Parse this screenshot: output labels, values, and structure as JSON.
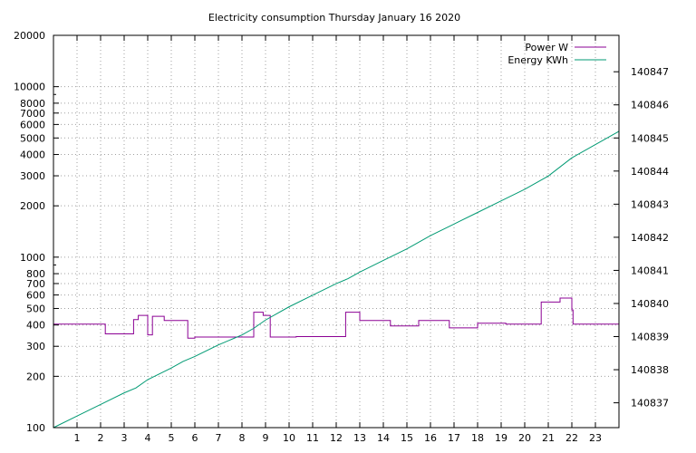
{
  "chart_data": {
    "type": "line",
    "title": "Electricity consumption Thursday January 16 2020",
    "x_axis": {
      "range": [
        0,
        24
      ],
      "ticks": [
        1,
        2,
        3,
        4,
        5,
        6,
        7,
        8,
        9,
        10,
        11,
        12,
        13,
        14,
        15,
        16,
        17,
        18,
        19,
        20,
        21,
        22,
        23
      ],
      "tick_labels": [
        "1",
        "2",
        "3",
        "4",
        "5",
        "6",
        "7",
        "8",
        "9",
        "10",
        "11",
        "12",
        "13",
        "14",
        "15",
        "16",
        "17",
        "18",
        "19",
        "20",
        "21",
        "22",
        "23"
      ],
      "grid": true
    },
    "y_axis_left": {
      "scale": "log",
      "range": [
        100,
        20000
      ],
      "ticks": [
        100,
        200,
        300,
        400,
        500,
        600,
        700,
        800,
        1000,
        2000,
        3000,
        4000,
        5000,
        6000,
        7000,
        8000,
        10000,
        20000
      ],
      "tick_labels": [
        "100",
        "200",
        "300",
        "400",
        "500",
        "600",
        "700",
        "800",
        "1000",
        "2000",
        "3000",
        "4000",
        "5000",
        "6000",
        "7000",
        "8000",
        "10000",
        "20000"
      ],
      "grid": true
    },
    "y_axis_right": {
      "scale": "linear",
      "range": [
        140836.25,
        140848.1
      ],
      "ticks": [
        140837,
        140838,
        140839,
        140840,
        140841,
        140842,
        140843,
        140844,
        140845,
        140846,
        140847
      ],
      "tick_labels": [
        "140837",
        "140838",
        "140839",
        "140840",
        "140841",
        "140842",
        "140843",
        "140844",
        "140845",
        "140846",
        "140847"
      ]
    },
    "legend": {
      "placement": "top-right"
    },
    "series": [
      {
        "name": "Power W",
        "color": "#8b0094",
        "axis": "left",
        "step": true,
        "points": [
          [
            0,
            405
          ],
          [
            2.2,
            405
          ],
          [
            2.2,
            355
          ],
          [
            3.4,
            355
          ],
          [
            3.4,
            430
          ],
          [
            3.6,
            430
          ],
          [
            3.6,
            455
          ],
          [
            4.0,
            455
          ],
          [
            4.0,
            350
          ],
          [
            4.2,
            350
          ],
          [
            4.2,
            450
          ],
          [
            4.7,
            450
          ],
          [
            4.7,
            425
          ],
          [
            5.7,
            425
          ],
          [
            5.7,
            335
          ],
          [
            6.0,
            335
          ],
          [
            6.0,
            340
          ],
          [
            8.5,
            340
          ],
          [
            8.5,
            475
          ],
          [
            8.9,
            475
          ],
          [
            8.9,
            455
          ],
          [
            9.2,
            455
          ],
          [
            9.2,
            340
          ],
          [
            10.3,
            340
          ],
          [
            10.3,
            342
          ],
          [
            12.4,
            342
          ],
          [
            12.4,
            475
          ],
          [
            13.0,
            475
          ],
          [
            13.0,
            425
          ],
          [
            14.3,
            425
          ],
          [
            14.3,
            395
          ],
          [
            15.5,
            395
          ],
          [
            15.5,
            425
          ],
          [
            16.8,
            425
          ],
          [
            16.8,
            385
          ],
          [
            18.0,
            385
          ],
          [
            18.0,
            410
          ],
          [
            19.2,
            410
          ],
          [
            19.2,
            405
          ],
          [
            20.7,
            405
          ],
          [
            20.7,
            545
          ],
          [
            21.5,
            545
          ],
          [
            21.5,
            575
          ],
          [
            22.0,
            575
          ],
          [
            22.0,
            490
          ],
          [
            22.05,
            490
          ],
          [
            22.05,
            405
          ],
          [
            24,
            405
          ]
        ]
      },
      {
        "name": "Energy KWh",
        "color": "#009a73",
        "axis": "right",
        "step": false,
        "points": [
          [
            0,
            140836.25
          ],
          [
            1,
            140836.6
          ],
          [
            2,
            140836.95
          ],
          [
            3,
            140837.3
          ],
          [
            3.5,
            140837.45
          ],
          [
            4,
            140837.7
          ],
          [
            5,
            140838.05
          ],
          [
            5.5,
            140838.25
          ],
          [
            6,
            140838.4
          ],
          [
            7,
            140838.75
          ],
          [
            8,
            140839.05
          ],
          [
            8.5,
            140839.25
          ],
          [
            9,
            140839.5
          ],
          [
            10,
            140839.9
          ],
          [
            11,
            140840.25
          ],
          [
            12,
            140840.6
          ],
          [
            12.5,
            140840.75
          ],
          [
            13,
            140840.95
          ],
          [
            14,
            140841.3
          ],
          [
            15,
            140841.65
          ],
          [
            16,
            140842.05
          ],
          [
            17,
            140842.4
          ],
          [
            18,
            140842.75
          ],
          [
            19,
            140843.1
          ],
          [
            20,
            140843.45
          ],
          [
            21,
            140843.85
          ],
          [
            22,
            140844.4
          ],
          [
            23,
            140844.8
          ],
          [
            24,
            140845.2
          ]
        ]
      }
    ]
  }
}
